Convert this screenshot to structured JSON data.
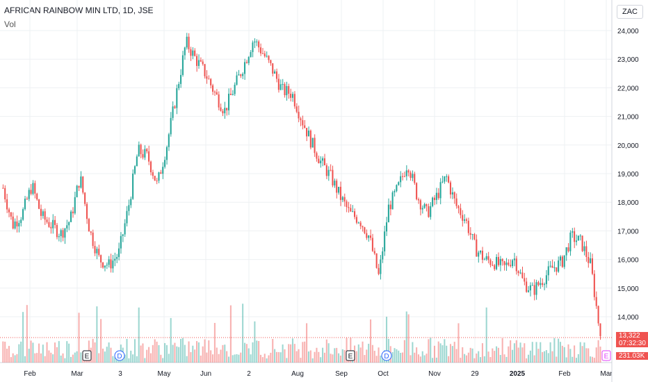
{
  "header": {
    "title": "AFRICAN RAINBOW MIN LTD, 1D, JSE",
    "sub": "Vol"
  },
  "currency": "ZAC",
  "price_tag": "13,322",
  "countdown": "07:32:30",
  "volume_tag": "231.03K",
  "colors": {
    "up": "#26a69a",
    "down": "#ef5350",
    "grid": "#eef0f3",
    "axis": "#d1d4dc"
  },
  "chart_data": {
    "type": "candlestick",
    "y_ticks": [
      "24,000",
      "23,000",
      "22,000",
      "21,000",
      "20,000",
      "19,000",
      "18,000",
      "17,000",
      "16,000",
      "15,000",
      "14,000"
    ],
    "y_tick_values": [
      24000,
      23000,
      22000,
      21000,
      20000,
      19000,
      18000,
      17000,
      16000,
      15000,
      14000
    ],
    "x_ticks": [
      "Feb",
      "Mar",
      "3",
      "May",
      "Jun",
      "2",
      "Aug",
      "Sep",
      "Oct",
      "Nov",
      "29",
      "2025",
      "Feb",
      "Mar"
    ],
    "events": [
      {
        "label": "E",
        "type": "earnings"
      },
      {
        "label": "D",
        "type": "dividend"
      },
      {
        "label": "E",
        "type": "earnings"
      },
      {
        "label": "D",
        "type": "dividend"
      },
      {
        "label": "E",
        "type": "earnings"
      }
    ],
    "close_path": [
      18500,
      17200,
      17600,
      18600,
      17500,
      17200,
      16900,
      17400,
      18900,
      17000,
      16000,
      15800,
      16200,
      17800,
      19800,
      19600,
      18600,
      20000,
      21800,
      23600,
      23000,
      22500,
      21800,
      21200,
      22000,
      22800,
      23700,
      23200,
      22600,
      21900,
      21800,
      20900,
      20100,
      19400,
      18900,
      18200,
      17600,
      17400,
      16800,
      15400,
      17800,
      18500,
      19400,
      18200,
      17600,
      18200,
      18900,
      17900,
      17400,
      16400,
      16000,
      15900,
      15700,
      16100,
      15200,
      14900,
      15300,
      15700,
      15900,
      16800,
      16600,
      15800,
      13322
    ],
    "last_price": 13322
  }
}
